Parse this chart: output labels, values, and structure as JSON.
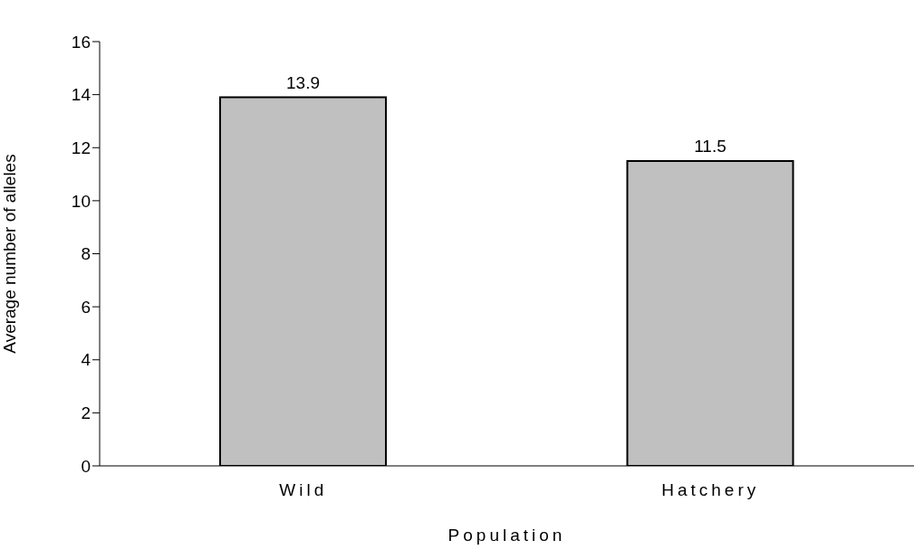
{
  "chart_data": {
    "type": "bar",
    "xlabel": "Population",
    "ylabel": "Average number of alleles",
    "categories": [
      "Wild",
      "Hatchery"
    ],
    "values": [
      13.9,
      11.5
    ],
    "color": "#c0c0c0",
    "ylim": [
      0,
      16
    ],
    "yticks": [
      0,
      2,
      4,
      6,
      8,
      10,
      12,
      14,
      16
    ],
    "grid": false,
    "legend": false,
    "data_labels": true
  }
}
